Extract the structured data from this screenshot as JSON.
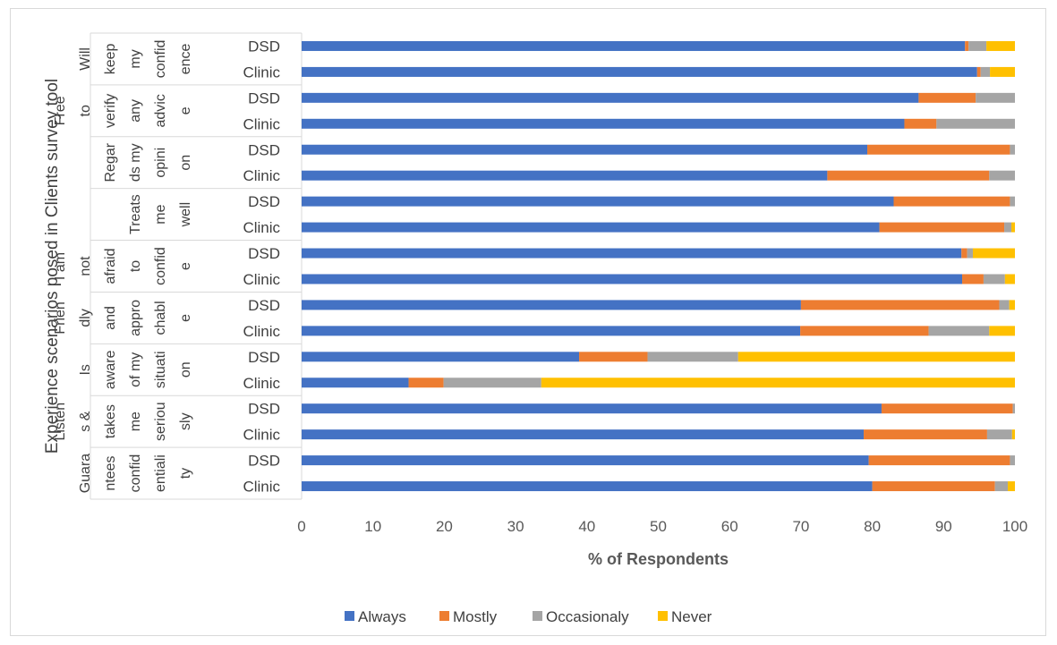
{
  "chart_data": {
    "type": "bar",
    "orientation": "horizontal",
    "stacked": true,
    "ylabel": "Experience scenarios posed in Clients survey tool",
    "xlabel": "% of Respondents",
    "xlim": [
      0,
      100
    ],
    "xticks": [
      0,
      10,
      20,
      30,
      40,
      50,
      60,
      70,
      80,
      90,
      100
    ],
    "legend_position": "bottom",
    "colors": {
      "Always": "#4472C4",
      "Mostly": "#ED7D31",
      "Occasionaly": "#A5A5A5",
      "Never": "#FFC000"
    },
    "groups": [
      {
        "label_lines": [
          "Will",
          "keep",
          "my",
          "confid",
          "ence"
        ],
        "rows": [
          {
            "label": "DSD",
            "values": [
              93,
              0.5,
              2.5,
              4
            ]
          },
          {
            "label": "Clinic",
            "values": [
              94.7,
              0.5,
              1.3,
              3.5
            ]
          }
        ]
      },
      {
        "label_lines": [
          "Free",
          "to",
          "verify",
          "any",
          "advic",
          "e"
        ],
        "rows": [
          {
            "label": "DSD",
            "values": [
              86.5,
              8,
              5.5,
              0
            ]
          },
          {
            "label": "Clinic",
            "values": [
              84.5,
              4.5,
              11,
              0
            ]
          }
        ]
      },
      {
        "label_lines": [
          "Regar",
          "ds my",
          "opini",
          "on"
        ],
        "rows": [
          {
            "label": "DSD",
            "values": [
              79.3,
              20,
              0.7,
              0
            ]
          },
          {
            "label": "Clinic",
            "values": [
              73.7,
              22.7,
              3.6,
              0
            ]
          }
        ]
      },
      {
        "label_lines": [
          "Treats",
          "me",
          "well"
        ],
        "rows": [
          {
            "label": "DSD",
            "values": [
              83,
              16.3,
              0.7,
              0
            ]
          },
          {
            "label": "Clinic",
            "values": [
              81,
              17.5,
              1,
              0.5
            ]
          }
        ]
      },
      {
        "label_lines": [
          "I am",
          "not",
          "afraid",
          "to",
          "confid",
          "e"
        ],
        "rows": [
          {
            "label": "DSD",
            "values": [
              92.5,
              0.8,
              0.8,
              5.9
            ]
          },
          {
            "label": "Clinic",
            "values": [
              92.6,
              3,
              3,
              1.4
            ]
          }
        ]
      },
      {
        "label_lines": [
          "Frien",
          "dly",
          "and",
          "appro",
          "chabl",
          "e"
        ],
        "rows": [
          {
            "label": "DSD",
            "values": [
              70,
              27.8,
              1.4,
              0.8
            ]
          },
          {
            "label": "Clinic",
            "values": [
              69.9,
              18,
              8.5,
              3.6
            ]
          }
        ]
      },
      {
        "label_lines": [
          "Is",
          "aware",
          "of my",
          "situati",
          "on"
        ],
        "rows": [
          {
            "label": "DSD",
            "values": [
              38.9,
              9.6,
              12.7,
              38.8
            ]
          },
          {
            "label": "Clinic",
            "values": [
              15,
              4.9,
              13.7,
              66.4
            ]
          }
        ]
      },
      {
        "label_lines": [
          "Listen",
          "s &",
          "takes",
          "me",
          "seriou",
          "sly"
        ],
        "rows": [
          {
            "label": "DSD",
            "values": [
              81.3,
              18.4,
              0.3,
              0
            ]
          },
          {
            "label": "Clinic",
            "values": [
              78.8,
              17.3,
              3.5,
              0.4
            ]
          }
        ]
      },
      {
        "label_lines": [
          "Guara",
          "ntees",
          "confid",
          "entiali",
          "ty"
        ],
        "rows": [
          {
            "label": "DSD",
            "values": [
              79.5,
              19.8,
              0.7,
              0
            ]
          },
          {
            "label": "Clinic",
            "values": [
              80,
              17.2,
              1.8,
              1
            ]
          }
        ]
      }
    ],
    "series": [
      "Always",
      "Mostly",
      "Occasionaly",
      "Never"
    ]
  }
}
